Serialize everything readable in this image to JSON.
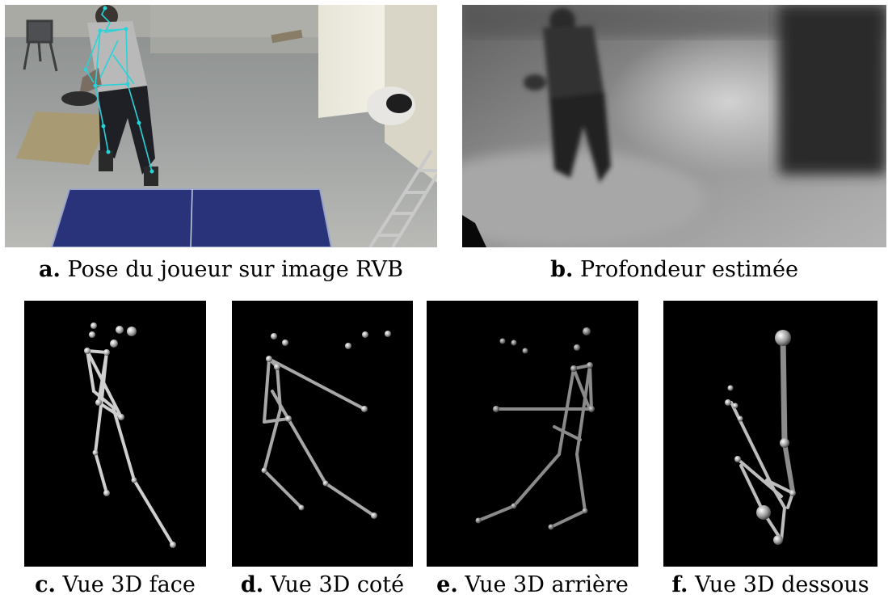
{
  "figure": {
    "top_row": [
      {
        "letter": "a.",
        "caption": "Pose du joueur sur image RVB"
      },
      {
        "letter": "b.",
        "caption": "Profondeur estimée"
      }
    ],
    "bottom_row": [
      {
        "letter": "c.",
        "caption": "Vue 3D face"
      },
      {
        "letter": "d.",
        "caption": "Vue 3D coté"
      },
      {
        "letter": "e.",
        "caption": "Vue 3D arrière"
      },
      {
        "letter": "f.",
        "caption": "Vue 3D dessous"
      }
    ]
  },
  "colors": {
    "skeleton_overlay": "#29d3d8",
    "table_blue": "#28337a",
    "render_background": "#000000",
    "bone": "#c8c8c8"
  }
}
